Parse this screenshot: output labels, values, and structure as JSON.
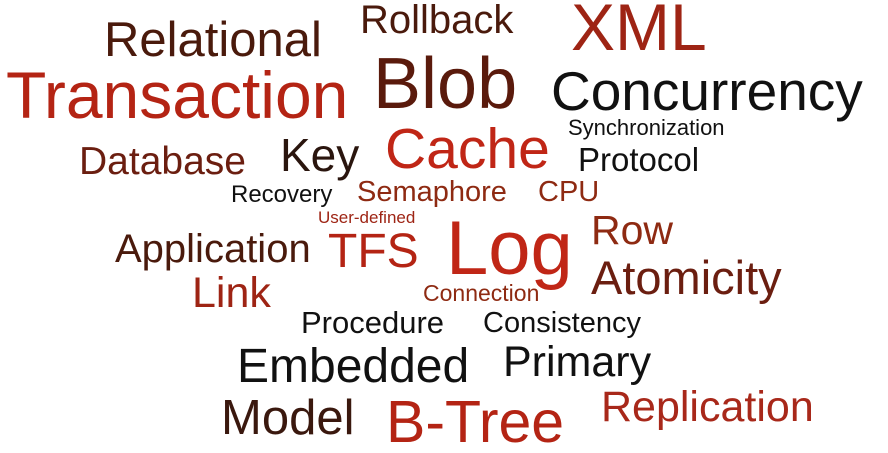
{
  "palette": {
    "dark_brown": "#4a1a0c",
    "brown": "#6b1e10",
    "rust": "#8e2a12",
    "red": "#b42414",
    "bright_red": "#c02616",
    "black": "#111111"
  },
  "words": [
    {
      "text": "Relational"
    },
    {
      "text": "Rollback"
    },
    {
      "text": "XML"
    },
    {
      "text": "Transaction"
    },
    {
      "text": "Blob"
    },
    {
      "text": "Concurrency"
    },
    {
      "text": "Synchronization"
    },
    {
      "text": "Database"
    },
    {
      "text": "Key"
    },
    {
      "text": "Cache"
    },
    {
      "text": "Protocol"
    },
    {
      "text": "Recovery"
    },
    {
      "text": "Semaphore"
    },
    {
      "text": "CPU"
    },
    {
      "text": "User-defined"
    },
    {
      "text": "Application"
    },
    {
      "text": "TFS"
    },
    {
      "text": "Log"
    },
    {
      "text": "Row"
    },
    {
      "text": "Link"
    },
    {
      "text": "Atomicity"
    },
    {
      "text": "Connection"
    },
    {
      "text": "Procedure"
    },
    {
      "text": "Consistency"
    },
    {
      "text": "Embedded"
    },
    {
      "text": "Primary"
    },
    {
      "text": "Model"
    },
    {
      "text": "B-Tree"
    },
    {
      "text": "Replication"
    }
  ]
}
